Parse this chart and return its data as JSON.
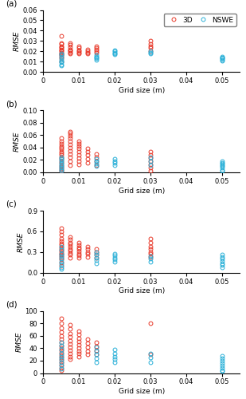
{
  "panels": [
    "(a)",
    "(b)",
    "(c)",
    "(d)"
  ],
  "xlabel": "Grid size (m)",
  "ylabel": "RMSE",
  "red_color": "#E8392A",
  "blue_color": "#2AB0D8",
  "marker_size": 3.5,
  "marker_lw": 0.7,
  "panel_a": {
    "ylim": [
      0,
      0.06
    ],
    "yticks": [
      0,
      0.01,
      0.02,
      0.03,
      0.04,
      0.05,
      0.06
    ],
    "red_x": [
      0.005,
      0.005,
      0.005,
      0.005,
      0.005,
      0.005,
      0.005,
      0.005,
      0.005,
      0.005,
      0.005,
      0.005,
      0.005,
      0.005,
      0.005,
      0.005,
      0.0075,
      0.0075,
      0.0075,
      0.0075,
      0.0075,
      0.0075,
      0.0075,
      0.0075,
      0.01,
      0.01,
      0.01,
      0.01,
      0.01,
      0.01,
      0.0125,
      0.0125,
      0.0125,
      0.0125,
      0.015,
      0.015,
      0.015,
      0.015,
      0.015,
      0.03,
      0.03,
      0.03,
      0.03,
      0.03
    ],
    "red_y": [
      0.035,
      0.028,
      0.027,
      0.025,
      0.024,
      0.023,
      0.022,
      0.021,
      0.02,
      0.019,
      0.018,
      0.017,
      0.016,
      0.015,
      0.013,
      0.01,
      0.028,
      0.026,
      0.024,
      0.022,
      0.021,
      0.02,
      0.019,
      0.018,
      0.025,
      0.023,
      0.021,
      0.02,
      0.019,
      0.018,
      0.022,
      0.02,
      0.019,
      0.018,
      0.025,
      0.023,
      0.022,
      0.02,
      0.019,
      0.03,
      0.027,
      0.025,
      0.023,
      0.02
    ],
    "blue_x": [
      0.005,
      0.005,
      0.005,
      0.005,
      0.005,
      0.005,
      0.005,
      0.005,
      0.015,
      0.015,
      0.015,
      0.015,
      0.015,
      0.02,
      0.02,
      0.02,
      0.02,
      0.02,
      0.03,
      0.03,
      0.03,
      0.05,
      0.05,
      0.05,
      0.05,
      0.05,
      0.05
    ],
    "blue_y": [
      0.018,
      0.016,
      0.014,
      0.012,
      0.01,
      0.009,
      0.007,
      0.006,
      0.016,
      0.015,
      0.014,
      0.013,
      0.012,
      0.021,
      0.02,
      0.019,
      0.018,
      0.017,
      0.02,
      0.019,
      0.018,
      0.015,
      0.014,
      0.013,
      0.013,
      0.012,
      0.011
    ]
  },
  "panel_b": {
    "ylim": [
      0,
      0.1
    ],
    "yticks": [
      0,
      0.02,
      0.04,
      0.06,
      0.08,
      0.1
    ],
    "red_x": [
      0.005,
      0.005,
      0.005,
      0.005,
      0.005,
      0.005,
      0.005,
      0.005,
      0.005,
      0.005,
      0.005,
      0.005,
      0.005,
      0.005,
      0.005,
      0.005,
      0.005,
      0.005,
      0.0075,
      0.0075,
      0.0075,
      0.0075,
      0.0075,
      0.0075,
      0.0075,
      0.0075,
      0.0075,
      0.0075,
      0.0075,
      0.0075,
      0.01,
      0.01,
      0.01,
      0.01,
      0.01,
      0.01,
      0.01,
      0.01,
      0.01,
      0.0125,
      0.0125,
      0.0125,
      0.0125,
      0.0125,
      0.015,
      0.015,
      0.015,
      0.015,
      0.03,
      0.03,
      0.03,
      0.03,
      0.03,
      0.03,
      0.03
    ],
    "red_y": [
      0.055,
      0.05,
      0.046,
      0.043,
      0.04,
      0.037,
      0.034,
      0.031,
      0.028,
      0.025,
      0.022,
      0.018,
      0.015,
      0.012,
      0.009,
      0.006,
      0.004,
      0.002,
      0.066,
      0.063,
      0.059,
      0.055,
      0.05,
      0.045,
      0.04,
      0.035,
      0.03,
      0.025,
      0.018,
      0.012,
      0.05,
      0.046,
      0.042,
      0.038,
      0.033,
      0.028,
      0.023,
      0.018,
      0.013,
      0.038,
      0.033,
      0.028,
      0.022,
      0.016,
      0.03,
      0.024,
      0.018,
      0.012,
      0.033,
      0.028,
      0.023,
      0.018,
      0.013,
      0.008,
      0.003
    ],
    "blue_x": [
      0.005,
      0.005,
      0.005,
      0.005,
      0.005,
      0.005,
      0.005,
      0.005,
      0.005,
      0.015,
      0.015,
      0.015,
      0.015,
      0.02,
      0.02,
      0.02,
      0.02,
      0.03,
      0.03,
      0.03,
      0.05,
      0.05,
      0.05,
      0.05,
      0.05,
      0.05,
      0.05,
      0.05
    ],
    "blue_y": [
      0.025,
      0.022,
      0.019,
      0.016,
      0.013,
      0.01,
      0.008,
      0.005,
      0.003,
      0.022,
      0.018,
      0.014,
      0.01,
      0.022,
      0.018,
      0.015,
      0.012,
      0.025,
      0.018,
      0.012,
      0.018,
      0.016,
      0.014,
      0.012,
      0.01,
      0.007,
      0.004,
      0.002
    ]
  },
  "panel_c": {
    "ylim": [
      0,
      0.9
    ],
    "yticks": [
      0,
      0.3,
      0.6,
      0.9
    ],
    "red_x": [
      0.005,
      0.005,
      0.005,
      0.005,
      0.005,
      0.005,
      0.005,
      0.005,
      0.005,
      0.005,
      0.005,
      0.005,
      0.005,
      0.005,
      0.005,
      0.005,
      0.005,
      0.005,
      0.0075,
      0.0075,
      0.0075,
      0.0075,
      0.0075,
      0.0075,
      0.0075,
      0.0075,
      0.0075,
      0.0075,
      0.01,
      0.01,
      0.01,
      0.01,
      0.01,
      0.01,
      0.01,
      0.01,
      0.0125,
      0.0125,
      0.0125,
      0.0125,
      0.0125,
      0.015,
      0.015,
      0.015,
      0.015,
      0.03,
      0.03,
      0.03,
      0.03,
      0.03,
      0.03,
      0.03
    ],
    "red_y": [
      0.65,
      0.6,
      0.55,
      0.5,
      0.46,
      0.43,
      0.4,
      0.37,
      0.34,
      0.32,
      0.3,
      0.28,
      0.26,
      0.24,
      0.22,
      0.19,
      0.15,
      0.1,
      0.52,
      0.48,
      0.44,
      0.41,
      0.38,
      0.35,
      0.32,
      0.29,
      0.26,
      0.22,
      0.44,
      0.4,
      0.37,
      0.34,
      0.31,
      0.28,
      0.25,
      0.22,
      0.38,
      0.34,
      0.3,
      0.27,
      0.23,
      0.35,
      0.3,
      0.26,
      0.22,
      0.5,
      0.44,
      0.38,
      0.34,
      0.3,
      0.27,
      0.23
    ],
    "blue_x": [
      0.005,
      0.005,
      0.005,
      0.005,
      0.005,
      0.005,
      0.005,
      0.005,
      0.005,
      0.015,
      0.015,
      0.015,
      0.015,
      0.015,
      0.02,
      0.02,
      0.02,
      0.02,
      0.02,
      0.03,
      0.03,
      0.03,
      0.05,
      0.05,
      0.05,
      0.05,
      0.05,
      0.05,
      0.05
    ],
    "blue_y": [
      0.38,
      0.33,
      0.28,
      0.24,
      0.2,
      0.16,
      0.12,
      0.08,
      0.05,
      0.3,
      0.26,
      0.22,
      0.18,
      0.14,
      0.28,
      0.25,
      0.22,
      0.19,
      0.16,
      0.24,
      0.2,
      0.16,
      0.26,
      0.23,
      0.2,
      0.17,
      0.14,
      0.11,
      0.08
    ]
  },
  "panel_d": {
    "ylim": [
      0,
      100
    ],
    "yticks": [
      0,
      20,
      40,
      60,
      80,
      100
    ],
    "red_x": [
      0.005,
      0.005,
      0.005,
      0.005,
      0.005,
      0.005,
      0.005,
      0.005,
      0.005,
      0.005,
      0.005,
      0.005,
      0.005,
      0.005,
      0.005,
      0.005,
      0.005,
      0.005,
      0.0075,
      0.0075,
      0.0075,
      0.0075,
      0.0075,
      0.0075,
      0.0075,
      0.0075,
      0.0075,
      0.0075,
      0.0075,
      0.01,
      0.01,
      0.01,
      0.01,
      0.01,
      0.01,
      0.01,
      0.01,
      0.01,
      0.0125,
      0.0125,
      0.0125,
      0.0125,
      0.0125,
      0.015,
      0.015,
      0.015,
      0.015,
      0.03,
      0.03
    ],
    "red_y": [
      88,
      80,
      73,
      66,
      60,
      55,
      50,
      45,
      41,
      37,
      33,
      29,
      25,
      21,
      17,
      13,
      9,
      5,
      78,
      71,
      64,
      58,
      52,
      47,
      42,
      37,
      32,
      27,
      22,
      68,
      62,
      56,
      51,
      46,
      41,
      36,
      31,
      26,
      55,
      48,
      42,
      36,
      30,
      50,
      43,
      37,
      30,
      80,
      30
    ],
    "blue_x": [
      0.005,
      0.005,
      0.005,
      0.005,
      0.005,
      0.005,
      0.005,
      0.005,
      0.005,
      0.015,
      0.015,
      0.015,
      0.015,
      0.015,
      0.02,
      0.02,
      0.02,
      0.02,
      0.02,
      0.03,
      0.03,
      0.03,
      0.05,
      0.05,
      0.05,
      0.05,
      0.05,
      0.05,
      0.05,
      0.05
    ],
    "blue_y": [
      50,
      44,
      38,
      32,
      27,
      22,
      17,
      12,
      7,
      42,
      36,
      30,
      24,
      18,
      38,
      32,
      27,
      22,
      17,
      32,
      25,
      18,
      28,
      24,
      20,
      16,
      12,
      9,
      5,
      3
    ]
  }
}
